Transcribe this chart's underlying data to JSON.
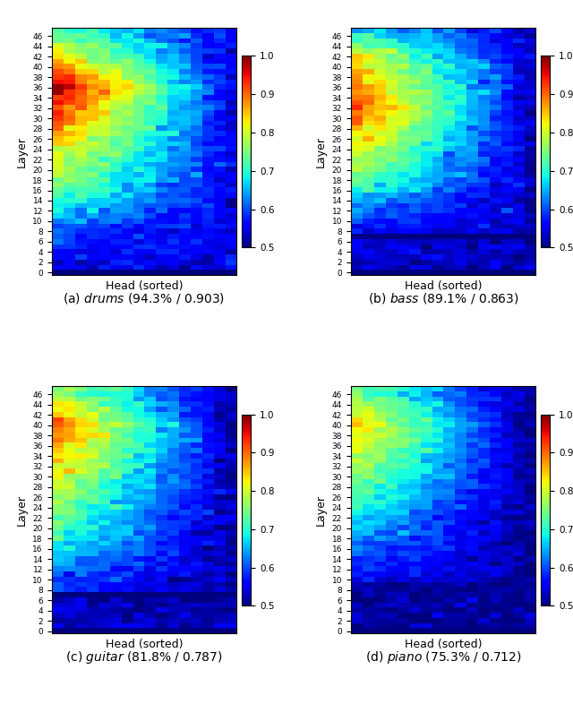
{
  "n_layers": 48,
  "n_heads": 16,
  "vmin": 0.5,
  "vmax": 1.0,
  "cmap": "jet",
  "xlabel": "Head (sorted)",
  "ylabel": "Layer",
  "yticks": [
    0,
    2,
    4,
    6,
    8,
    10,
    12,
    14,
    16,
    18,
    20,
    22,
    24,
    26,
    28,
    30,
    32,
    34,
    36,
    38,
    40,
    42,
    44,
    46
  ],
  "colorbar_ticks": [
    0.5,
    0.6,
    0.7,
    0.8,
    0.9,
    1.0
  ],
  "instruments": [
    "drums",
    "bass",
    "guitar",
    "piano"
  ],
  "caption_prefixes": [
    "(a) ",
    "(b) ",
    "(c) ",
    "(d) "
  ],
  "caption_italics": [
    "drums",
    "bass",
    "guitar",
    "piano"
  ],
  "caption_suffixes": [
    " (94.3% / 0.903)",
    " (89.1% / 0.863)",
    " (81.8% / 0.787)",
    " (75.3% / 0.712)"
  ],
  "figsize": [
    6.4,
    7.86
  ],
  "dpi": 100
}
